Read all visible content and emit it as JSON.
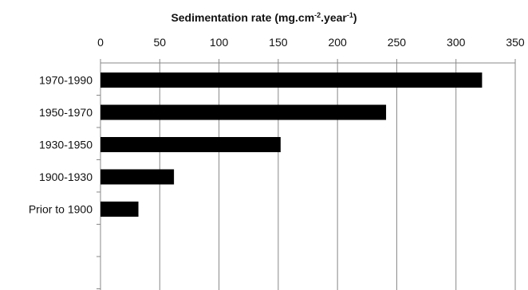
{
  "chart_data": {
    "type": "bar",
    "orientation": "horizontal",
    "title": "",
    "xlabel": {
      "parts": [
        {
          "text": "Sedimentation rate (mg.cm",
          "sup": false
        },
        {
          "text": "-2",
          "sup": true
        },
        {
          "text": ".year",
          "sup": false
        },
        {
          "text": "-1",
          "sup": true
        },
        {
          "text": ")",
          "sup": false
        }
      ]
    },
    "ylabel": "",
    "x_axis_position": "top",
    "xlim": [
      0,
      350
    ],
    "x_ticks": [
      0,
      50,
      100,
      150,
      200,
      250,
      300,
      350
    ],
    "grid": {
      "vertical": true,
      "horizontal": false
    },
    "legend": "none",
    "categories": [
      "1970-1990",
      "1950-1970",
      "1930-1950",
      "1900-1930",
      "Prior to 1900"
    ],
    "values": [
      322,
      241,
      152,
      62,
      32
    ],
    "empty_category_slots": 2,
    "bar_color": "#000000",
    "grid_color": "#888888",
    "axis_color": "#888888",
    "text_color": "#111111"
  }
}
